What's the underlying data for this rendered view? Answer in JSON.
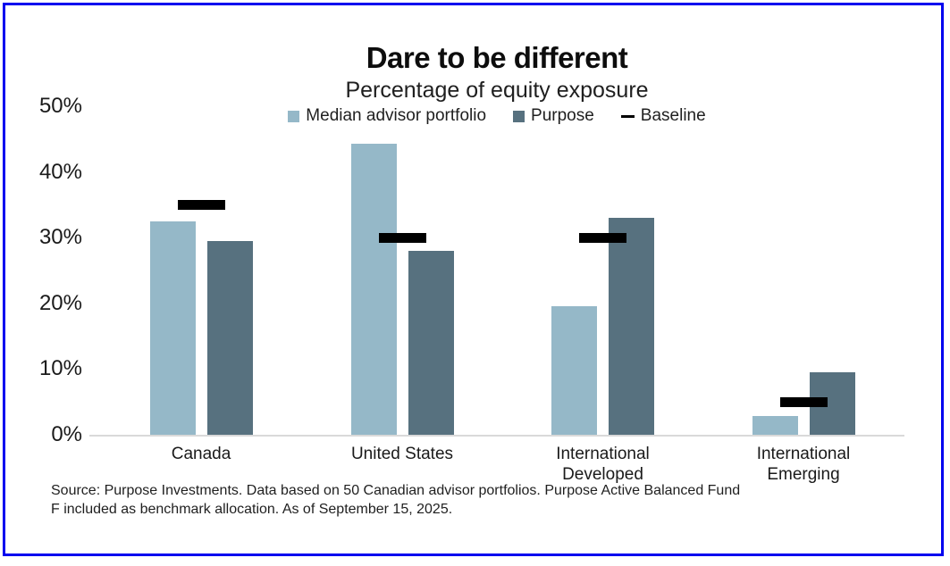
{
  "frame": {
    "border_color": "#0101EF"
  },
  "chart_data": {
    "type": "bar",
    "title": "Dare to be different",
    "subtitle": "Percentage of equity exposure",
    "categories": [
      "Canada",
      "United States",
      "International Developed",
      "International Emerging"
    ],
    "series": [
      {
        "name": "Median advisor portfolio",
        "marker": "bar",
        "color": "#95B8C8",
        "values": [
          32.5,
          44.3,
          19.5,
          2.8
        ]
      },
      {
        "name": "Purpose",
        "marker": "bar",
        "color": "#57717F",
        "values": [
          29.5,
          28.0,
          33.0,
          9.5
        ]
      },
      {
        "name": "Baseline",
        "marker": "dash",
        "color": "#000000",
        "values": [
          35.0,
          30.0,
          30.0,
          5.0
        ]
      }
    ],
    "y_axis": {
      "min": 0,
      "max": 50,
      "tick_step": 10,
      "tick_labels": [
        "0%",
        "10%",
        "20%",
        "30%",
        "40%",
        "50%"
      ],
      "unit": "%",
      "grid": false
    },
    "legend_position": "top-center",
    "axis_line_color": "#d9d9d9"
  },
  "footer": {
    "source_line1": "Source: Purpose Investments. Data based on 50 Canadian advisor portfolios. Purpose Active Balanced Fund",
    "source_line2": "F included as benchmark allocation. As of September 15, 2025."
  }
}
